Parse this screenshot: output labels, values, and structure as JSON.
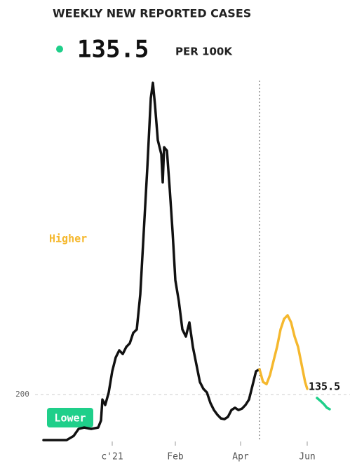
{
  "chart_data": {
    "type": "line",
    "title": "WEEKLY NEW REPORTED CASES",
    "unit_label": "PER 100K",
    "xlim": [
      0,
      437
    ],
    "xticks": [
      {
        "value": 98,
        "label": "c'21"
      },
      {
        "value": 188,
        "label": "Feb"
      },
      {
        "value": 281,
        "label": "Apr"
      },
      {
        "value": 376,
        "label": "Jun"
      }
    ],
    "ylim": [
      0,
      1625
    ],
    "yticks": [
      200
    ],
    "marker_x": 308,
    "annotations": {
      "higher": "Higher",
      "lower": "Lower"
    },
    "colors": {
      "higher": "#f5b82e",
      "lower": "#1fcf8a",
      "dot": "#1fcf8a"
    },
    "series": [
      {
        "color": "#111111",
        "x": [
          0,
          33,
          43,
          50,
          58,
          68,
          78,
          82,
          84,
          88,
          93,
          98,
          103,
          108,
          113,
          118,
          123,
          128,
          133,
          138,
          143,
          148,
          153,
          156,
          159,
          163,
          168,
          170,
          172,
          176,
          180,
          184,
          188,
          193,
          198,
          203,
          208,
          213,
          218,
          223,
          228,
          233,
          238,
          243,
          248,
          253,
          258,
          263,
          268,
          273,
          278,
          283,
          288,
          293,
          298,
          303,
          308
        ],
        "values": [
          0,
          0,
          18,
          49,
          55,
          49,
          55,
          86,
          178,
          154,
          209,
          302,
          363,
          394,
          378,
          409,
          425,
          471,
          486,
          640,
          917,
          1194,
          1502,
          1569,
          1471,
          1317,
          1255,
          1132,
          1286,
          1271,
          1102,
          917,
          702,
          609,
          486,
          455,
          517,
          409,
          332,
          255,
          225,
          209,
          163,
          132,
          111,
          95,
          92,
          102,
          132,
          142,
          132,
          138,
          154,
          178,
          240,
          302,
          311
        ]
      },
      {
        "color": "#f5b82e",
        "x": [
          308,
          313,
          318,
          323,
          328,
          333,
          338,
          343,
          348,
          353,
          358,
          363,
          368,
          373,
          376
        ],
        "values": [
          311,
          255,
          246,
          286,
          348,
          409,
          486,
          532,
          548,
          517,
          455,
          409,
          332,
          255,
          225
        ]
      },
      {
        "color": "#1fcf8a",
        "x": [
          390,
          396,
          400,
          404,
          408
        ],
        "values": [
          185,
          169,
          157,
          142,
          135.5
        ]
      }
    ]
  }
}
